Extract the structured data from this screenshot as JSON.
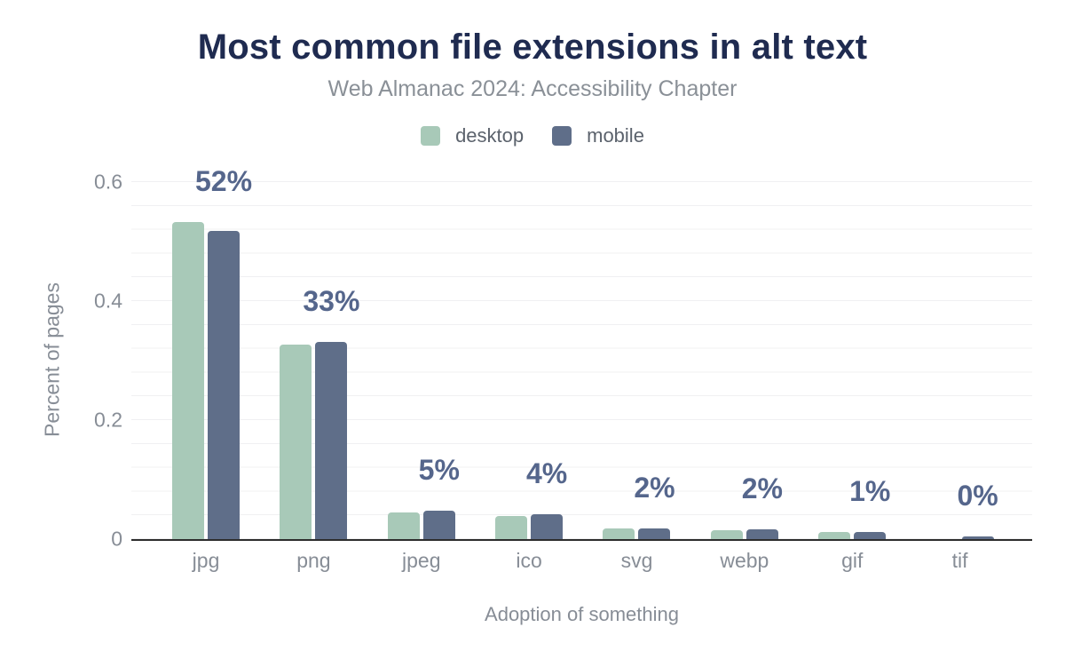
{
  "chart_data": {
    "type": "bar",
    "title": "Most common file extensions in alt text",
    "subtitle": "Web Almanac 2024: Accessibility Chapter",
    "xlabel": "Adoption of something",
    "ylabel": "Percent of pages",
    "categories": [
      "jpg",
      "png",
      "jpeg",
      "ico",
      "svg",
      "webp",
      "gif",
      "tif"
    ],
    "series": [
      {
        "name": "desktop",
        "color": "#a8c9b8",
        "values": [
          0.533,
          0.327,
          0.0445,
          0.0385,
          0.018,
          0.0145,
          0.0115,
          0.0
        ]
      },
      {
        "name": "mobile",
        "color": "#5f6e89",
        "values": [
          0.518,
          0.331,
          0.048,
          0.0415,
          0.018,
          0.0165,
          0.0115,
          0.0045
        ]
      }
    ],
    "bar_labels": [
      "52%",
      "33%",
      "5%",
      "4%",
      "2%",
      "2%",
      "1%",
      "0%"
    ],
    "y_ticks": [
      "0",
      "0.2",
      "0.4",
      "0.6"
    ],
    "y_tick_values": [
      0,
      0.2,
      0.4,
      0.6
    ],
    "ylim": [
      0,
      0.6
    ],
    "legend_position": "top",
    "grid": true,
    "colors": {
      "title": "#1f2b50",
      "subtitle": "#8a9097",
      "data_label": "#55668c",
      "axis_text": "#878d96",
      "legend_text": "#5b626c",
      "axis_line": "#2d2d2d",
      "gridline": "#f0f0f2",
      "background": "#ffffff"
    }
  }
}
